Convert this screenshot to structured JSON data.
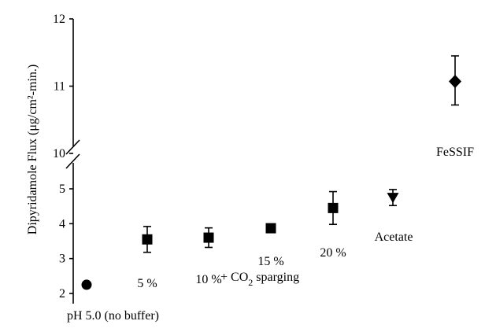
{
  "chart_data": {
    "type": "scatter",
    "title": "",
    "xlabel": "",
    "ylabel": "Dipyridamole Flux (μg/cm²-min.)",
    "y_axis": {
      "broken": true,
      "lower_range": [
        2,
        5
      ],
      "upper_range": [
        10,
        12
      ],
      "lower_ticks": [
        "2",
        "3",
        "4",
        "5"
      ],
      "upper_ticks": [
        "10",
        "11",
        "12"
      ]
    },
    "grid": false,
    "legend": "none",
    "points": [
      {
        "label": "pH 5.0 (no buffer)",
        "y": 2.25,
        "err_low": null,
        "err_high": null,
        "marker": "circle"
      },
      {
        "label": "5 %",
        "y": 3.55,
        "err_low": 3.18,
        "err_high": 3.92,
        "marker": "square"
      },
      {
        "label": "10 %",
        "y": 3.6,
        "err_low": 3.32,
        "err_high": 3.88,
        "marker": "square"
      },
      {
        "label": "15 %",
        "y": 3.87,
        "err_low": 3.78,
        "err_high": 3.96,
        "marker": "square"
      },
      {
        "label": "20 %",
        "y": 4.45,
        "err_low": 3.98,
        "err_high": 4.92,
        "marker": "square"
      },
      {
        "label": "Acetate",
        "y": 4.75,
        "err_low": 4.52,
        "err_high": 4.98,
        "marker": "triangle-down"
      },
      {
        "label": "FeSSIF",
        "y": 11.07,
        "err_low": 10.72,
        "err_high": 11.45,
        "marker": "diamond"
      }
    ],
    "group_annotation": {
      "prefix": "+ CO",
      "subscript": "2",
      "suffix": " sparging"
    }
  }
}
